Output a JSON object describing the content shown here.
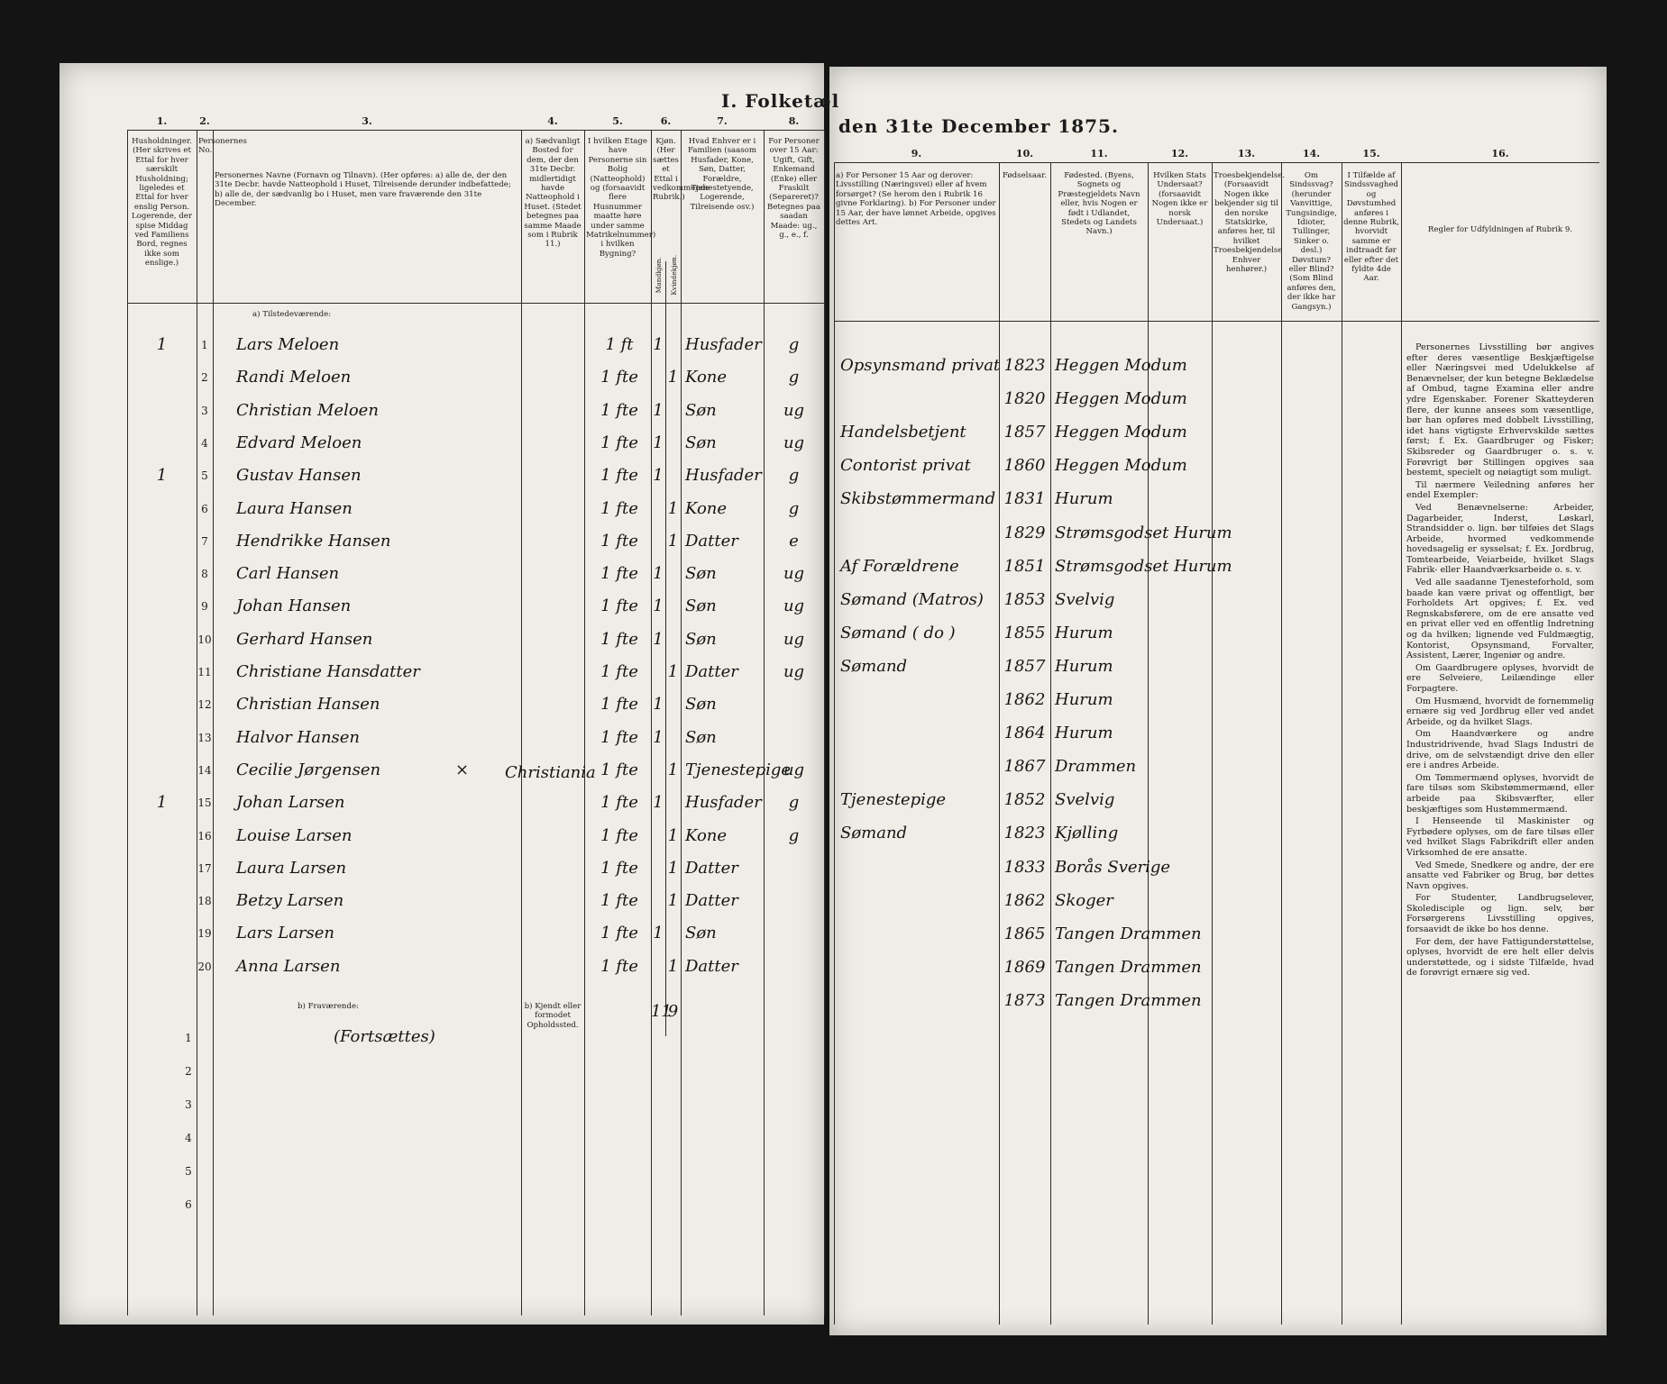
{
  "header": {
    "title_left": "I. Folketæl",
    "title_right": "den 31te December 1875."
  },
  "left_columns": [
    {
      "number": "1.",
      "heading": "Husholdninger. (Her skrives et Ettal for hver særskilt Husholdning; ligeledes et Ettal for hver enslig Person. Logerende, der spise Middag ved Familiens Bord, regnes ikke som enslige.)"
    },
    {
      "number": "2.",
      "heading": "Personernes No."
    },
    {
      "number": "3.",
      "heading": "Personernes Navne (Fornavn og Tilnavn). (Her opføres: a) alle de, der den 31te Decbr. havde Natteophold i Huset, Tilreisende derunder indbefattede; b) alle de, der sædvanlig bo i Huset, men vare fraværende den 31te December."
    },
    {
      "number": "4.",
      "heading": "a) Sædvanligt Bosted for dem, der den 31te Decbr. midlertidigt havde Natteophold i Huset. (Stedet betegnes paa samme Maade som i Rubrik 11.)"
    },
    {
      "number": "5.",
      "heading": "I hvilken Etage have Personerne sin Bolig (Natteophold) og (forsaavidt flere Husnummer maatte høre under samme Matrikelnummer) i hvilken Bygning?"
    },
    {
      "number": "6.",
      "heading": "Kjøn. (Her sættes et Ettal i vedkommende Rubrik.)",
      "sub": [
        "Mandkjøn.",
        "Kvindekjøn."
      ]
    },
    {
      "number": "7.",
      "heading": "Hvad Enhver er i Familien (saasom Husfader, Kone, Søn, Datter, Forældre, Tjenestetyende, Logerende, Tilreisende osv.)"
    },
    {
      "number": "8.",
      "heading": "For Personer over 15 Aar: Ugift, Gift, Enkemand (Enke) eller Fraskilt (Separeret)? Betegnes paa saadan Maade: ug., g., e., f."
    }
  ],
  "right_columns": [
    {
      "number": "9.",
      "heading": "a) For Personer 15 Aar og derover: Livsstilling (Næringsvei) eller af hvem forsørget? (Se herom den i Rubrik 16 givne Forklaring). b) For Personer under 15 Aar, der have lønnet Arbeide, opgives dettes Art."
    },
    {
      "number": "10.",
      "heading": "Fødselsaar."
    },
    {
      "number": "11.",
      "heading": "Fødested. (Byens, Sognets og Præstegjeldets Navn eller, hvis Nogen er født i Udlandet, Stedets og Landets Navn.)"
    },
    {
      "number": "12.",
      "heading": "Hvilken Stats Undersaat? (forsaavidt Nogen ikke er norsk Undersaat.)"
    },
    {
      "number": "13.",
      "heading": "Troesbekjendelse. (Forsaavidt Nogen ikke bekjender sig til den norske Statskirke, anføres her, til hvilket Troesbekjendelse Enhver henhører.)"
    },
    {
      "number": "14.",
      "heading": "Om Sindssvag? (herunder Vanvittige, Tungsindige, Idioter, Tullinger, Sinker o. desl.) Døvstum? eller Blind? (Som Blind anføres den, der ikke har Gangsyn.)"
    },
    {
      "number": "15.",
      "heading": "I Tilfælde af Sindssvaghed og Døvstumhed anføres i denne Rubrik, hvorvidt samme er indtraadt før eller efter det fyldte 4de Aar."
    },
    {
      "number": "16.",
      "heading": "Regler for Udfyldningen af Rubrik 9."
    }
  ],
  "section_present": "a) Tilstedeværende:",
  "section_absent": "b) Fraværende:",
  "absent_residence_heading": "b) Kjendt eller formodet Opholdssted.",
  "rows": [
    {
      "no": "1",
      "household": "1",
      "name": "Lars Meloen",
      "floor": "1 ft",
      "male": "1",
      "relation": "Husfader",
      "marital": "g",
      "occupation": "Opsynsmand privat",
      "birth_year": "1823",
      "birthplace": "Heggen Modum"
    },
    {
      "no": "2",
      "name": "Randi Meloen",
      "floor": "1 fte",
      "female": "1",
      "relation": "Kone",
      "marital": "g",
      "birth_year": "1820",
      "birthplace": "Heggen Modum"
    },
    {
      "no": "3",
      "name": "Christian Meloen",
      "floor": "1 fte",
      "male": "1",
      "relation": "Søn",
      "marital": "ug",
      "occupation": "Handelsbetjent",
      "birth_year": "1857",
      "birthplace": "Heggen Modum"
    },
    {
      "no": "4",
      "name": "Edvard Meloen",
      "floor": "1 fte",
      "male": "1",
      "relation": "Søn",
      "marital": "ug",
      "occupation": "Contorist privat",
      "birth_year": "1860",
      "birthplace": "Heggen Modum"
    },
    {
      "no": "5",
      "household": "1",
      "name": "Gustav Hansen",
      "floor": "1 fte",
      "male": "1",
      "relation": "Husfader",
      "marital": "g",
      "occupation": "Skibstømmermand",
      "birth_year": "1831",
      "birthplace": "Hurum"
    },
    {
      "no": "6",
      "name": "Laura Hansen",
      "floor": "1 fte",
      "female": "1",
      "relation": "Kone",
      "marital": "g",
      "birth_year": "1829",
      "birthplace": "Strømsgodset Hurum"
    },
    {
      "no": "7",
      "name": "Hendrikke Hansen",
      "floor": "1 fte",
      "female": "1",
      "relation": "Datter",
      "marital": "e",
      "occupation": "Af Forældrene",
      "birth_year": "1851",
      "birthplace": "Strømsgodset Hurum"
    },
    {
      "no": "8",
      "name": "Carl Hansen",
      "floor": "1 fte",
      "male": "1",
      "relation": "Søn",
      "marital": "ug",
      "occupation": "Sømand (Matros)",
      "birth_year": "1853",
      "birthplace": "Svelvig"
    },
    {
      "no": "9",
      "name": "Johan Hansen",
      "floor": "1 fte",
      "male": "1",
      "relation": "Søn",
      "marital": "ug",
      "occupation": "Sømand ( do )",
      "birth_year": "1855",
      "birthplace": "Hurum"
    },
    {
      "no": "10",
      "name": "Gerhard Hansen",
      "floor": "1 fte",
      "male": "1",
      "relation": "Søn",
      "marital": "ug",
      "occupation": "Sømand",
      "birth_year": "1857",
      "birthplace": "Hurum"
    },
    {
      "no": "11",
      "name": "Christiane Hansdatter",
      "floor": "1 fte",
      "female": "1",
      "relation": "Datter",
      "marital": "ug",
      "birth_year": "1862",
      "birthplace": "Hurum"
    },
    {
      "no": "12",
      "name": "Christian Hansen",
      "floor": "1 fte",
      "male": "1",
      "relation": "Søn",
      "birth_year": "1864",
      "birthplace": "Hurum"
    },
    {
      "no": "13",
      "name": "Halvor Hansen",
      "floor": "1 fte",
      "male": "1",
      "relation": "Søn",
      "birth_year": "1867",
      "birthplace": "Drammen"
    },
    {
      "no": "14",
      "name": "Cecilie Jørgensen",
      "note": "×",
      "residence": "Christiania",
      "floor": "1 fte",
      "female": "1",
      "relation": "Tjenestepige",
      "marital": "ug",
      "occupation": "Tjenestepige",
      "birth_year": "1852",
      "birthplace": "Svelvig"
    },
    {
      "no": "15",
      "household": "1",
      "name": "Johan Larsen",
      "floor": "1 fte",
      "male": "1",
      "relation": "Husfader",
      "marital": "g",
      "occupation": "Sømand",
      "birth_year": "1823",
      "birthplace": "Kjølling"
    },
    {
      "no": "16",
      "name": "Louise Larsen",
      "floor": "1 fte",
      "female": "1",
      "relation": "Kone",
      "marital": "g",
      "birth_year": "1833",
      "birthplace": "Borås Sverige"
    },
    {
      "no": "17",
      "name": "Laura Larsen",
      "floor": "1 fte",
      "female": "1",
      "relation": "Datter",
      "birth_year": "1862",
      "birthplace": "Skoger"
    },
    {
      "no": "18",
      "name": "Betzy Larsen",
      "floor": "1 fte",
      "female": "1",
      "relation": "Datter",
      "birth_year": "1865",
      "birthplace": "Tangen Drammen"
    },
    {
      "no": "19",
      "name": "Lars Larsen",
      "floor": "1 fte",
      "male": "1",
      "relation": "Søn",
      "birth_year": "1869",
      "birthplace": "Tangen Drammen"
    },
    {
      "no": "20",
      "name": "Anna Larsen",
      "floor": "1 fte",
      "female": "1",
      "relation": "Datter",
      "birth_year": "1873",
      "birthplace": "Tangen Drammen"
    }
  ],
  "totals": {
    "male": "11",
    "female": "9"
  },
  "absent_note": "(Fortsættes)",
  "absent_rows": [
    "1",
    "2",
    "3",
    "4",
    "5",
    "6"
  ],
  "instructions": [
    "Personernes Livsstilling bør angives efter deres væsentlige Beskjæftigelse eller Næringsvei med Udelukkelse af Benævnelser, der kun betegne Beklædelse af Ombud, tagne Examina eller andre ydre Egenskaber. Forener Skatteyderen flere, der kunne ansees som væsentlige, bør han opføres med dobbelt Livsstilling, idet hans vigtigste Erhvervskilde sættes først; f. Ex. Gaardbruger og Fisker; Skibsreder og Gaardbruger o. s. v. Forøvrigt bør Stillingen opgives saa bestemt, specielt og nøiagtigt som muligt.",
    "Til nærmere Veiledning anføres her endel Exempler:",
    "Ved Benævnelserne: Arbeider, Dagarbeider, Inderst, Løskarl, Strandsidder o. lign. bør tilføies det Slags Arbeide, hvormed vedkommende hovedsagelig er sysselsat; f. Ex. Jordbrug, Tomtearbeide, Veiarbeide, hvilket Slags Fabrik- eller Haandværksarbeide o. s. v.",
    "Ved alle saadanne Tjenesteforhold, som baade kan være privat og offentligt, bør Forholdets Art opgives; f. Ex. ved Regnskabsførere, om de ere ansatte ved en privat eller ved en offentlig Indretning og da hvilken; lignende ved Fuldmægtig, Kontorist, Opsynsmand, Forvalter, Assistent, Lærer, Ingeniør og andre.",
    "Om Gaardbrugere oplyses, hvorvidt de ere Selveiere, Leilændinge eller Forpagtere.",
    "Om Husmænd, hvorvidt de fornemmelig ernære sig ved Jordbrug eller ved andet Arbeide, og da hvilket Slags.",
    "Om Haandværkere og andre Industridrivende, hvad Slags Industri de drive, om de selvstændigt drive den eller ere i andres Arbeide.",
    "Om Tømmermænd oplyses, hvorvidt de fare tilsøs som Skibstømmermænd, eller arbeide paa Skibsværfter, eller beskjæftiges som Hustømmermænd.",
    "I Henseende til Maskinister og Fyrbødere oplyses, om de fare tilsøs eller ved hvilket Slags Fabrikdrift eller anden Virksomhed de ere ansatte.",
    "Ved Smede, Snedkere og andre, der ere ansatte ved Fabriker og Brug, bør dettes Navn opgives.",
    "For Studenter, Landbrugselever, Skoledisciple og lign. selv, bør Forsørgerens Livsstilling opgives, forsaavidt de ikke bo hos denne.",
    "For dem, der have Fattigunderstøttelse, oplyses, hvorvidt de ere helt eller delvis understøttede, og i sidste Tilfælde, hvad de forøvrigt ernære sig ved."
  ]
}
